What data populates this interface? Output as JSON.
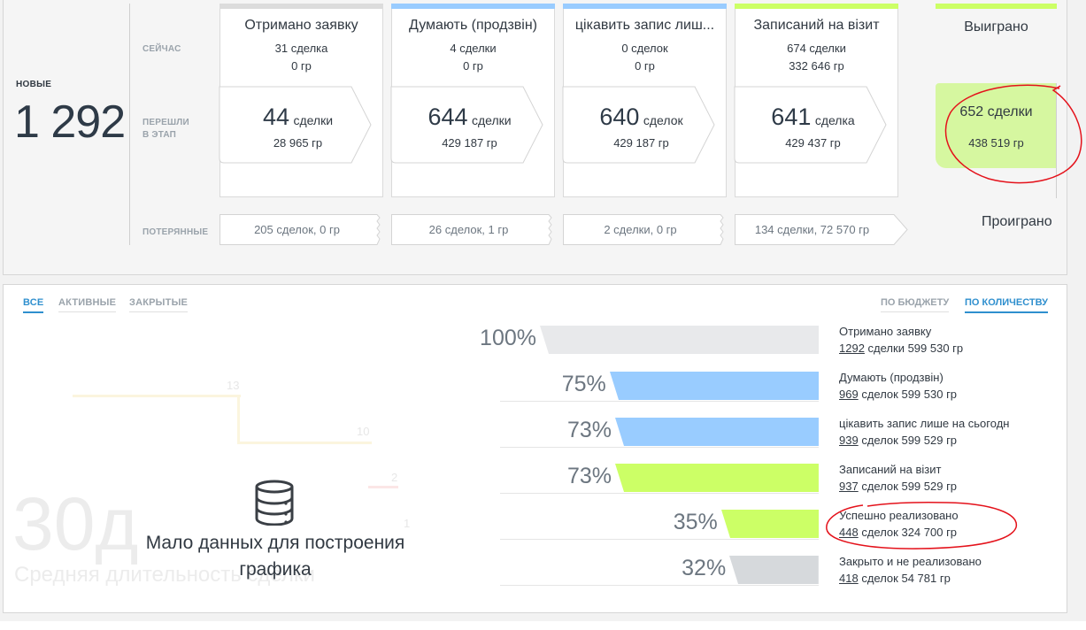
{
  "header": {
    "new_label": "НОВЫЕ",
    "new_count": "1 292",
    "row_now": "СЕЙЧАС",
    "row_moved_1": "ПЕРЕШЛИ",
    "row_moved_2": "В ЭТАП",
    "row_lost": "ПОТЕРЯННЫЕ"
  },
  "stages": [
    {
      "title": "Отримано заявку",
      "now_deals": "31 сделка",
      "now_sum": "0 гр",
      "moved_num": "44",
      "moved_unit": "сделки",
      "moved_sum": "28 965 гр",
      "lost": "205 сделок, 0 гр",
      "color": "#dcdcdc"
    },
    {
      "title": "Думають (продзвін)",
      "now_deals": "4 сделки",
      "now_sum": "0 гр",
      "moved_num": "644",
      "moved_unit": "сделки",
      "moved_sum": "429 187 гр",
      "lost": "26 сделок, 1 гр",
      "color": "#99ccff"
    },
    {
      "title": "цікавить запис лиш...",
      "now_deals": "0 сделок",
      "now_sum": "0 гр",
      "moved_num": "640",
      "moved_unit": "сделок",
      "moved_sum": "429 187 гр",
      "lost": "2 сделки, 0 гр",
      "color": "#99ccff"
    },
    {
      "title": "Записаний на візит",
      "now_deals": "674 сделки",
      "now_sum": "332 646 гр",
      "moved_num": "641",
      "moved_unit": "сделка",
      "moved_sum": "429 437 гр",
      "lost": "134 сделки, 72 570 гр",
      "color": "#ccff66"
    }
  ],
  "won": {
    "title": "Выиграно",
    "moved_num": "652",
    "moved_unit": "сделки",
    "moved_sum": "438 519 гр",
    "color": "#ccff66"
  },
  "lost_final": "Проиграно",
  "tabs": [
    "ВСЕ",
    "АКТИВНЫЕ",
    "ЗАКРЫТЫЕ"
  ],
  "modes": [
    "ПО БЮДЖЕТУ",
    "ПО КОЛИЧЕСТВУ"
  ],
  "duration": {
    "value": "30д",
    "label": "Средняя длительность сделки",
    "nodata_1": "Мало данных для построения",
    "nodata_2": "графика",
    "ghost_values": [
      "13",
      "10",
      "2",
      "1"
    ]
  },
  "funnel": [
    {
      "pct": "100%",
      "value": 100,
      "name": "Отримано заявку",
      "count": "1292",
      "rest": " сделки 599 530 гр",
      "color": "#e8e9eb"
    },
    {
      "pct": "75%",
      "value": 75,
      "name": "Думають (продзвін)",
      "count": "969",
      "rest": " сделок 599 530 гр",
      "color": "#99ccff"
    },
    {
      "pct": "73%",
      "value": 73,
      "name": "цікавить запис лише на сьогодні",
      "count": "939",
      "rest": " сделок 599 529 гр",
      "color": "#99ccff"
    },
    {
      "pct": "73%",
      "value": 73,
      "name": "Записаний на візит",
      "count": "937",
      "rest": " сделок 599 529 гр",
      "color": "#ccff66"
    },
    {
      "pct": "35%",
      "value": 35,
      "name": "Успешно реализовано",
      "count": "448",
      "rest": " сделок 324 700 гр",
      "color": "#ccff66"
    },
    {
      "pct": "32%",
      "value": 32,
      "name": "Закрыто и не реализовано",
      "count": "418",
      "rest": " сделок 54 781 гр",
      "color": "#d6d9dc"
    }
  ]
}
